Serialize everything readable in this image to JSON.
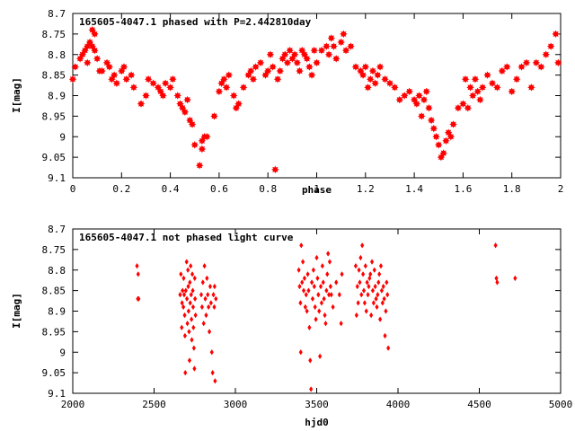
{
  "chart_data": [
    {
      "type": "scatter",
      "title": "165605-4047.1 phased with P=2.442810day",
      "xlabel": "phase",
      "ylabel": "I[mag]",
      "xlim": [
        0,
        2
      ],
      "ylim": [
        8.7,
        9.1
      ],
      "y_inverted": true,
      "grid": false,
      "marker_color": "#ff0000",
      "marker": "filled-star",
      "x_ticks": [
        "0",
        "0.2",
        "0.4",
        "0.6",
        "0.8",
        "1",
        "1.2",
        "1.4",
        "1.6",
        "1.8",
        "2"
      ],
      "y_ticks": [
        "8.7",
        "8.75",
        "8.8",
        "8.85",
        "8.9",
        "8.95",
        "9",
        "9.05",
        "9.1"
      ],
      "x": [
        0.0,
        0.01,
        0.04,
        0.05,
        0.06,
        0.07,
        0.08,
        0.09,
        0.1,
        0.11,
        0.06,
        0.08,
        0.09,
        0.03,
        0.12,
        0.14,
        0.15,
        0.16,
        0.17,
        0.18,
        0.2,
        0.21,
        0.22,
        0.24,
        0.25,
        0.28,
        0.3,
        0.31,
        0.33,
        0.35,
        0.36,
        0.37,
        0.38,
        0.4,
        0.41,
        0.43,
        0.44,
        0.45,
        0.46,
        0.47,
        0.48,
        0.49,
        0.5,
        0.52,
        0.53,
        0.54,
        0.55,
        0.53,
        0.58,
        0.6,
        0.61,
        0.62,
        0.63,
        0.64,
        0.66,
        0.67,
        0.68,
        0.7,
        0.72,
        0.73,
        0.74,
        0.75,
        0.77,
        0.79,
        0.8,
        0.81,
        0.82,
        0.83,
        0.84,
        0.85,
        0.86,
        0.87,
        0.88,
        0.89,
        0.9,
        0.91,
        0.92,
        0.93,
        0.94,
        0.95,
        0.96,
        0.97,
        0.98,
        0.99,
        1.0,
        1.02,
        1.04,
        1.05,
        1.06,
        1.07,
        1.08,
        1.1,
        1.11,
        1.12,
        1.14,
        1.16,
        1.18,
        1.19,
        1.2,
        1.21,
        1.22,
        1.23,
        1.24,
        1.25,
        1.26,
        1.28,
        1.3,
        1.32,
        1.34,
        1.36,
        1.38,
        1.4,
        1.41,
        1.42,
        1.43,
        1.44,
        1.45,
        1.46,
        1.47,
        1.48,
        1.49,
        1.5,
        1.51,
        1.52,
        1.53,
        1.54,
        1.55,
        1.56,
        1.58,
        1.6,
        1.61,
        1.62,
        1.63,
        1.64,
        1.65,
        1.66,
        1.67,
        1.68,
        1.7,
        1.72,
        1.74,
        1.76,
        1.78,
        1.8,
        1.82,
        1.84,
        1.86,
        1.88,
        1.9,
        1.92,
        1.94,
        1.96,
        1.98,
        1.99
      ],
      "y": [
        8.86,
        8.83,
        8.8,
        8.79,
        8.78,
        8.77,
        8.78,
        8.79,
        8.81,
        8.84,
        8.82,
        8.74,
        8.75,
        8.81,
        8.84,
        8.82,
        8.83,
        8.86,
        8.85,
        8.87,
        8.84,
        8.83,
        8.86,
        8.85,
        8.88,
        8.92,
        8.9,
        8.86,
        8.87,
        8.88,
        8.89,
        8.9,
        8.87,
        8.88,
        8.86,
        8.9,
        8.92,
        8.93,
        8.94,
        8.91,
        8.96,
        8.97,
        9.02,
        9.07,
        9.01,
        9.0,
        9.0,
        9.03,
        8.95,
        8.89,
        8.87,
        8.86,
        8.88,
        8.85,
        8.9,
        8.93,
        8.92,
        8.88,
        8.85,
        8.84,
        8.86,
        8.83,
        8.82,
        8.85,
        8.84,
        8.8,
        8.83,
        9.08,
        8.86,
        8.84,
        8.81,
        8.8,
        8.82,
        8.79,
        8.81,
        8.8,
        8.82,
        8.84,
        8.79,
        8.8,
        8.81,
        8.83,
        8.85,
        8.79,
        8.82,
        8.79,
        8.78,
        8.8,
        8.76,
        8.78,
        8.81,
        8.77,
        8.75,
        8.79,
        8.78,
        8.83,
        8.84,
        8.85,
        8.83,
        8.88,
        8.86,
        8.84,
        8.87,
        8.85,
        8.83,
        8.86,
        8.87,
        8.88,
        8.91,
        8.9,
        8.89,
        8.91,
        8.92,
        8.9,
        8.95,
        8.91,
        8.89,
        8.93,
        8.96,
        8.98,
        9.0,
        9.02,
        9.05,
        9.04,
        9.01,
        8.99,
        9.0,
        8.97,
        8.93,
        8.92,
        8.86,
        8.93,
        8.88,
        8.9,
        8.86,
        8.89,
        8.91,
        8.88,
        8.85,
        8.87,
        8.88,
        8.84,
        8.83,
        8.89,
        8.86,
        8.83,
        8.82,
        8.88,
        8.82,
        8.83,
        8.8,
        8.78,
        8.75,
        8.82
      ]
    },
    {
      "type": "scatter",
      "title": "165605-4047.1 not phased light curve",
      "xlabel": "hjd0",
      "ylabel": "I[mag]",
      "xlim": [
        2000,
        5000
      ],
      "ylim": [
        8.7,
        9.1
      ],
      "y_inverted": true,
      "grid": false,
      "marker_color": "#ff0000",
      "marker": "diamond",
      "x_ticks": [
        "2000",
        "2500",
        "3000",
        "3500",
        "4000",
        "4500",
        "5000"
      ],
      "y_ticks": [
        "8.7",
        "8.75",
        "8.8",
        "8.85",
        "8.9",
        "8.95",
        "9",
        "9.05",
        "9.1"
      ],
      "x": [
        2395,
        2400,
        2402,
        2405,
        2660,
        2665,
        2670,
        2672,
        2675,
        2680,
        2682,
        2685,
        2688,
        2690,
        2692,
        2695,
        2700,
        2702,
        2705,
        2708,
        2710,
        2712,
        2715,
        2718,
        2720,
        2722,
        2725,
        2728,
        2730,
        2732,
        2735,
        2738,
        2740,
        2742,
        2745,
        2748,
        2750,
        2752,
        2755,
        2790,
        2795,
        2800,
        2805,
        2810,
        2815,
        2820,
        2825,
        2830,
        2835,
        2840,
        2845,
        2850,
        2855,
        2860,
        2865,
        2870,
        2872,
        2875,
        2880,
        3390,
        3395,
        3400,
        3402,
        3405,
        3410,
        3415,
        3420,
        3425,
        3430,
        3435,
        3440,
        3445,
        3450,
        3455,
        3460,
        3465,
        3470,
        3475,
        3480,
        3485,
        3490,
        3495,
        3500,
        3505,
        3510,
        3515,
        3520,
        3525,
        3530,
        3535,
        3540,
        3545,
        3550,
        3555,
        3560,
        3565,
        3570,
        3575,
        3580,
        3585,
        3590,
        3600,
        3620,
        3640,
        3650,
        3655,
        3740,
        3745,
        3750,
        3755,
        3760,
        3765,
        3770,
        3775,
        3780,
        3785,
        3790,
        3795,
        3800,
        3805,
        3810,
        3815,
        3820,
        3825,
        3830,
        3835,
        3840,
        3845,
        3850,
        3855,
        3860,
        3865,
        3870,
        3875,
        3880,
        3885,
        3890,
        3895,
        3900,
        3905,
        3910,
        3915,
        3920,
        3925,
        3930,
        3935,
        3940,
        4600,
        4605,
        4610,
        4720
      ],
      "y": [
        8.79,
        8.87,
        8.81,
        8.87,
        8.86,
        8.81,
        8.94,
        8.88,
        8.85,
        8.89,
        8.82,
        8.86,
        8.91,
        8.96,
        9.05,
        8.85,
        8.78,
        8.87,
        8.93,
        8.8,
        8.84,
        8.9,
        8.95,
        9.02,
        8.83,
        8.88,
        8.79,
        8.86,
        8.92,
        8.97,
        8.81,
        8.85,
        8.89,
        8.94,
        8.99,
        9.04,
        8.82,
        8.87,
        8.91,
        8.86,
        8.89,
        8.83,
        8.93,
        8.79,
        8.87,
        8.91,
        8.82,
        8.86,
        8.89,
        8.95,
        8.84,
        8.88,
        9.0,
        9.05,
        8.86,
        8.89,
        8.84,
        9.07,
        8.87,
        8.8,
        8.84,
        8.88,
        9.0,
        8.74,
        8.83,
        8.78,
        8.85,
        8.82,
        8.89,
        8.86,
        8.9,
        8.81,
        8.85,
        8.94,
        9.02,
        9.09,
        8.83,
        8.87,
        8.8,
        8.84,
        8.89,
        8.92,
        8.77,
        8.82,
        8.86,
        8.9,
        9.01,
        8.84,
        8.88,
        8.79,
        8.83,
        8.87,
        8.91,
        8.93,
        8.85,
        8.81,
        8.76,
        8.86,
        8.78,
        8.84,
        8.86,
        8.89,
        8.83,
        8.86,
        8.93,
        8.81,
        8.79,
        8.91,
        8.84,
        8.88,
        8.8,
        8.83,
        8.77,
        8.86,
        8.74,
        8.81,
        8.85,
        8.88,
        8.79,
        8.9,
        8.83,
        8.86,
        8.84,
        8.82,
        8.81,
        8.91,
        8.78,
        8.85,
        8.88,
        8.8,
        8.84,
        8.87,
        8.89,
        8.86,
        8.83,
        8.81,
        8.92,
        8.79,
        8.85,
        8.88,
        8.84,
        8.87,
        8.96,
        8.9,
        8.83,
        8.86,
        8.99,
        8.74,
        8.82,
        8.83,
        8.82
      ]
    }
  ]
}
